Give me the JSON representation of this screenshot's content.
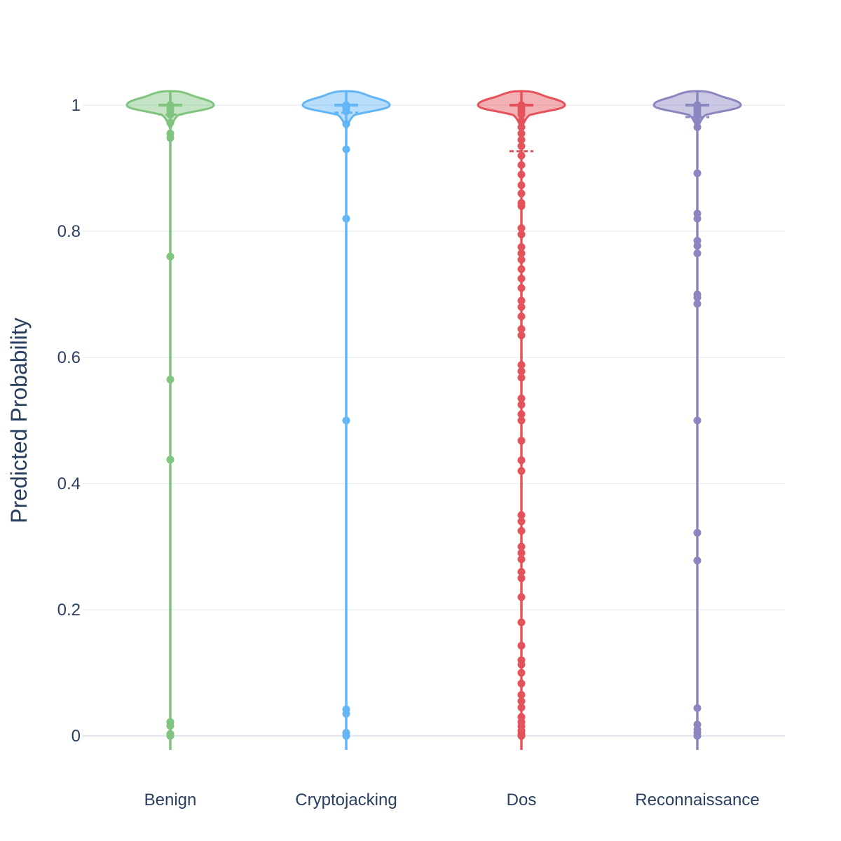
{
  "chart_data": {
    "type": "violin",
    "title": "",
    "xlabel": "",
    "ylabel": "Predicted Probability",
    "ylim": [
      -0.02,
      1.02
    ],
    "yticks": [
      0,
      0.2,
      0.4,
      0.6,
      0.8,
      1
    ],
    "ytick_labels": [
      "0",
      "0.2",
      "0.4",
      "0.6",
      "0.8",
      "1"
    ],
    "grid": true,
    "legend": "none",
    "categories": [
      "Benign",
      "Cryptojacking",
      "Dos",
      "Reconnaissance"
    ],
    "series": [
      {
        "category": "Benign",
        "color": "#7fc47f",
        "fill": "rgba(127,196,127,0.45)",
        "median": 1.0,
        "mean": 0.985,
        "points": [
          1.0,
          0.998,
          0.995,
          0.99,
          0.985,
          0.972,
          0.955,
          0.948,
          0.76,
          0.565,
          0.438,
          0.022,
          0.016,
          0.003,
          0.0
        ]
      },
      {
        "category": "Cryptojacking",
        "color": "#64b5f6",
        "fill": "rgba(100,181,246,0.45)",
        "median": 1.0,
        "mean": 0.988,
        "points": [
          1.0,
          0.998,
          0.995,
          0.99,
          0.97,
          0.93,
          0.82,
          0.5,
          0.042,
          0.035,
          0.005,
          0.0
        ]
      },
      {
        "category": "Dos",
        "color": "#e5535a",
        "fill": "rgba(229,83,90,0.45)",
        "median": 1.0,
        "mean": 0.927,
        "points": [
          1.0,
          0.995,
          0.99,
          0.985,
          0.975,
          0.965,
          0.955,
          0.945,
          0.935,
          0.92,
          0.905,
          0.89,
          0.873,
          0.86,
          0.845,
          0.84,
          0.805,
          0.795,
          0.775,
          0.765,
          0.755,
          0.74,
          0.725,
          0.71,
          0.69,
          0.68,
          0.665,
          0.645,
          0.635,
          0.588,
          0.578,
          0.568,
          0.535,
          0.525,
          0.51,
          0.5,
          0.468,
          0.437,
          0.42,
          0.35,
          0.34,
          0.325,
          0.3,
          0.29,
          0.28,
          0.26,
          0.25,
          0.22,
          0.18,
          0.143,
          0.12,
          0.113,
          0.1,
          0.083,
          0.065,
          0.055,
          0.045,
          0.03,
          0.022,
          0.015,
          0.008,
          0.003,
          0.0
        ]
      },
      {
        "category": "Reconnaissance",
        "color": "#8c86c0",
        "fill": "rgba(140,134,192,0.45)",
        "median": 1.0,
        "mean": 0.981,
        "points": [
          1.0,
          0.995,
          0.99,
          0.985,
          0.975,
          0.965,
          0.892,
          0.828,
          0.82,
          0.785,
          0.777,
          0.765,
          0.7,
          0.695,
          0.685,
          0.5,
          0.322,
          0.278,
          0.044,
          0.018,
          0.01,
          0.005,
          0.0
        ]
      }
    ]
  }
}
